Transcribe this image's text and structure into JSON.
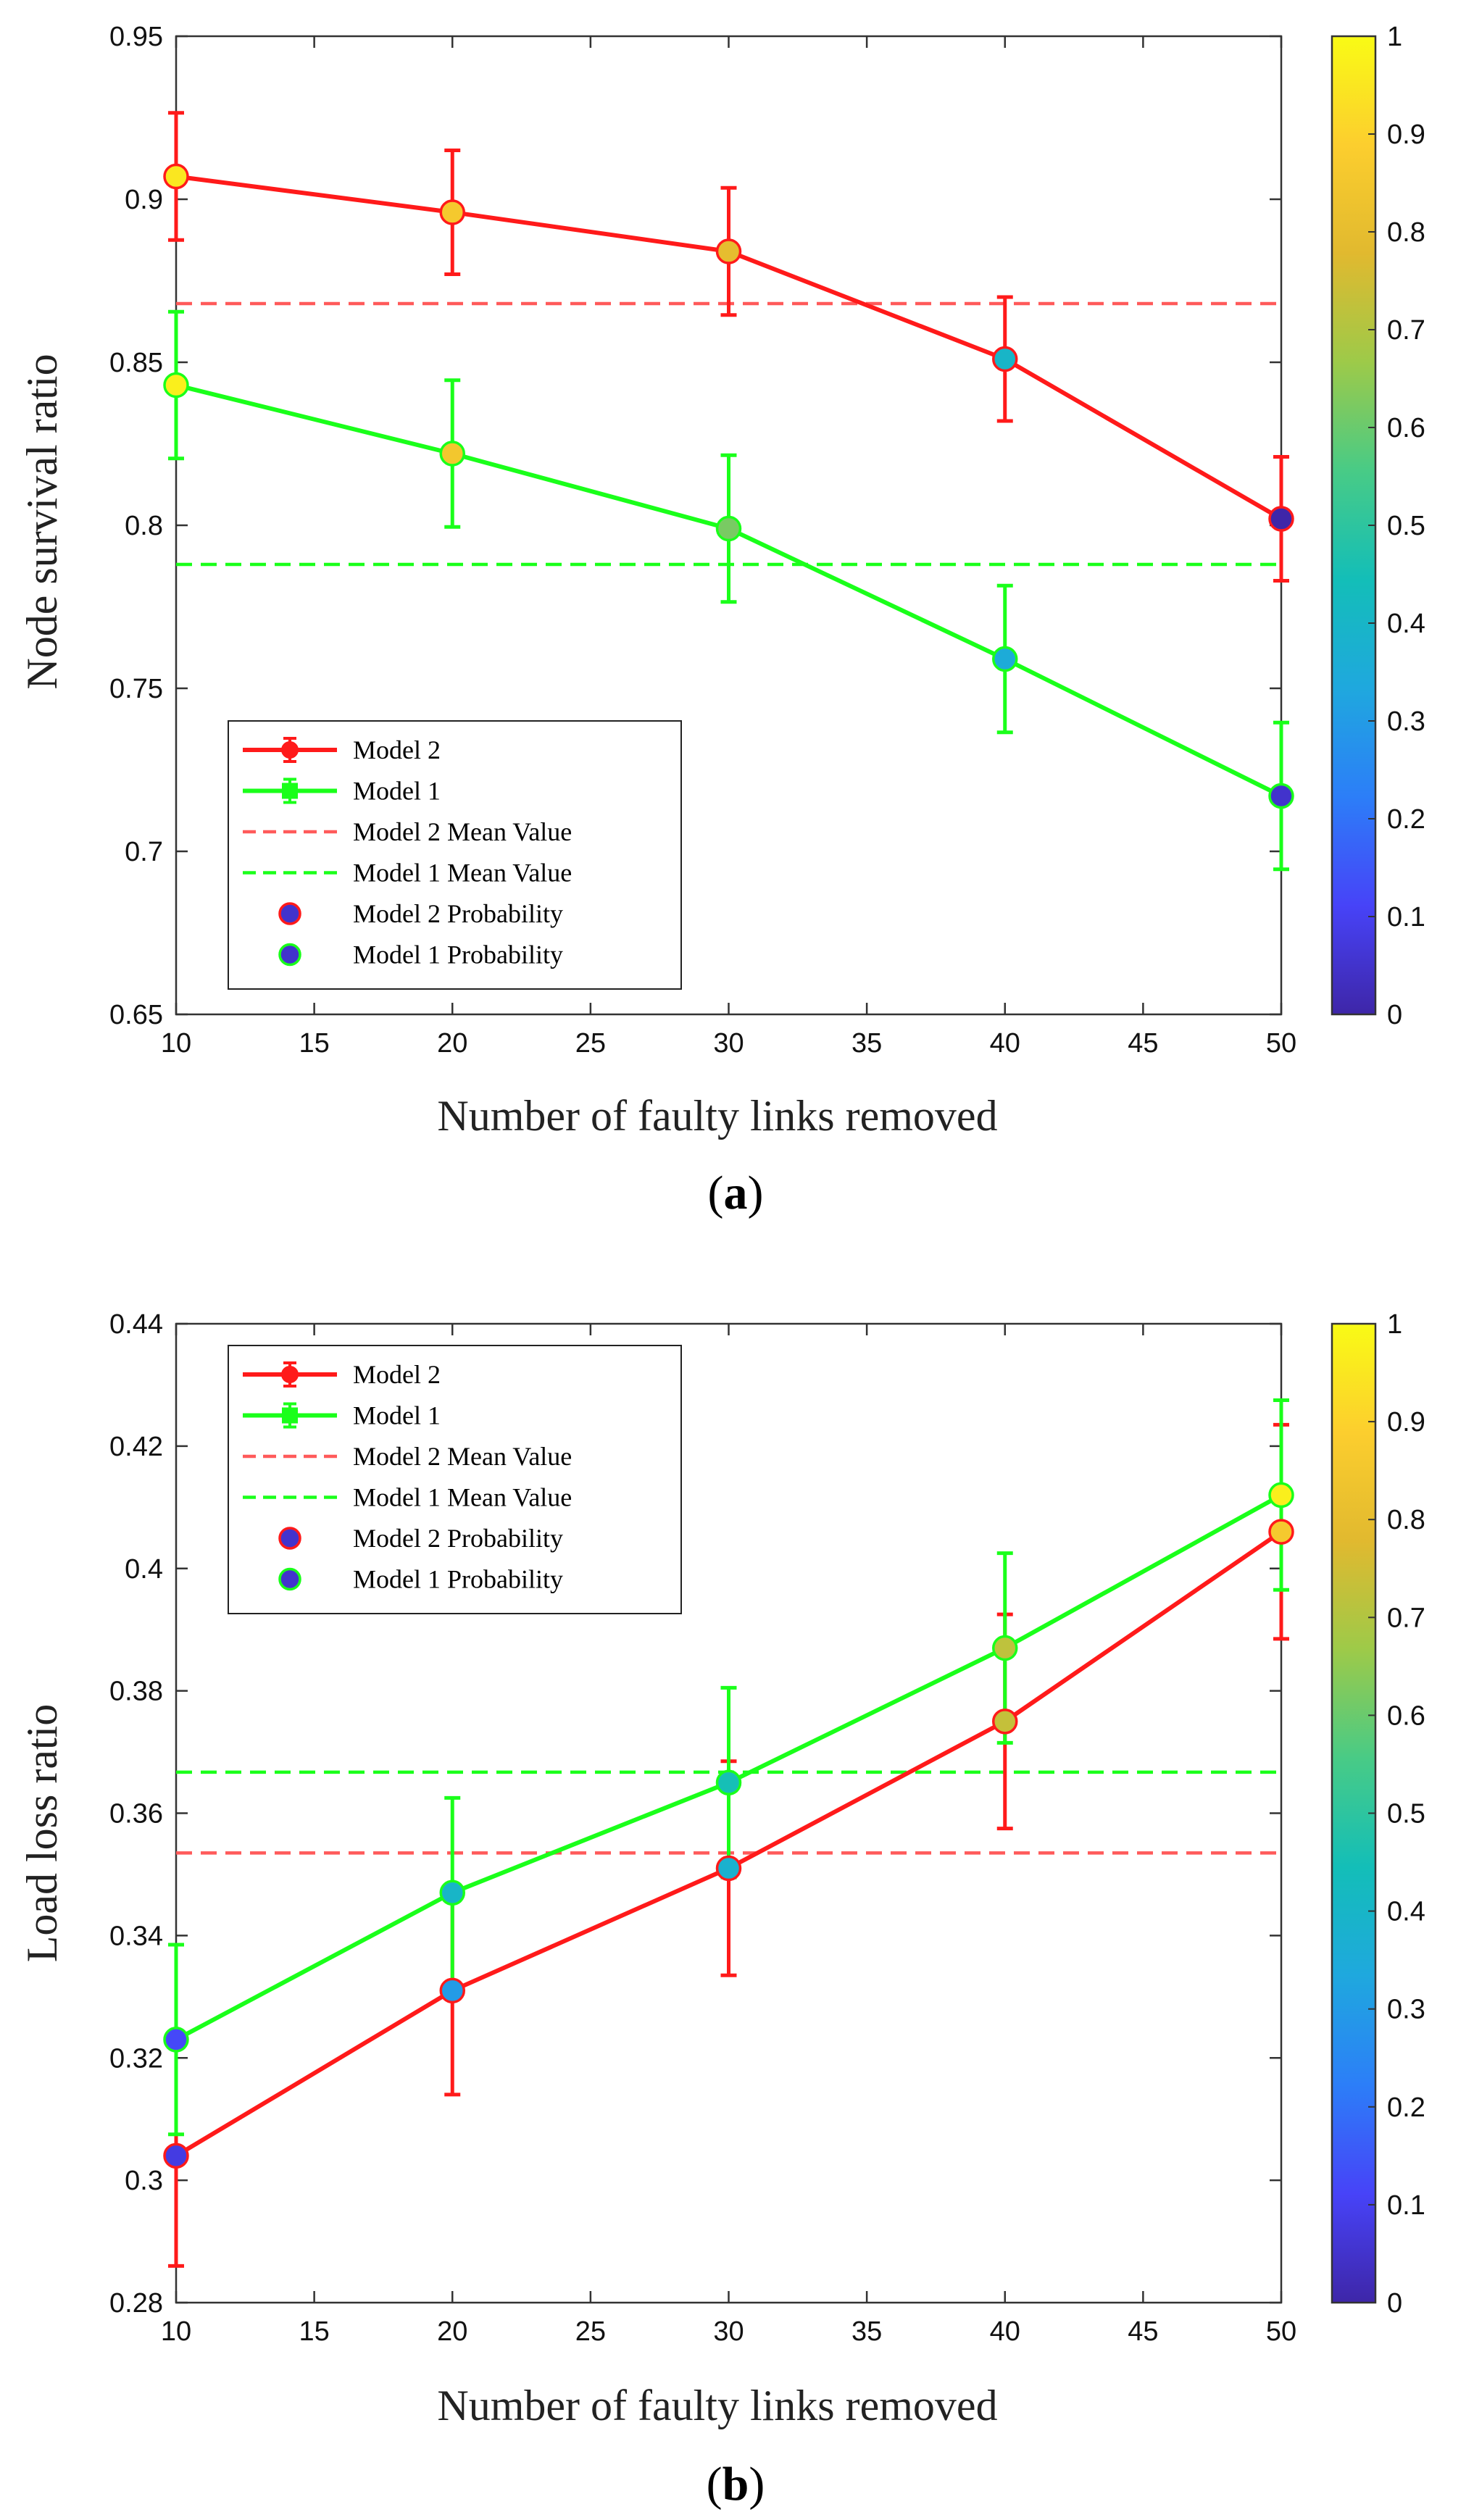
{
  "colors": {
    "model2": "#ff1a1a",
    "model1": "#1aff1a",
    "model2_mean": "#ff5a5a",
    "model1_mean": "#1aff1a"
  },
  "colormap_stops": [
    "#3e26a8",
    "#4743f8",
    "#2c7ef8",
    "#1fa8de",
    "#13beb8",
    "#48cb86",
    "#9dca49",
    "#e1b92f",
    "#fcce2e",
    "#f9fb15"
  ],
  "chart_data": [
    {
      "id": "a",
      "type": "line",
      "panel_label": "(a)",
      "panel_letter": "a",
      "xlabel": "Number of faulty links removed",
      "ylabel": "Node survival ratio",
      "xlim": [
        10,
        50
      ],
      "ylim": [
        0.65,
        0.95
      ],
      "xticks": [
        10,
        15,
        20,
        25,
        30,
        35,
        40,
        45,
        50
      ],
      "yticks": [
        "0.65",
        "0.7",
        "0.75",
        "0.8",
        "0.85",
        "0.9",
        "0.95"
      ],
      "x": [
        10,
        20,
        30,
        40,
        50
      ],
      "series": [
        {
          "name": "Model 2",
          "key": "model2",
          "values": [
            0.907,
            0.896,
            0.884,
            0.851,
            0.802
          ],
          "err": [
            0.0195,
            0.019,
            0.0195,
            0.019,
            0.019
          ],
          "prob": [
            0.95,
            0.86,
            0.8,
            0.4,
            0.0
          ]
        },
        {
          "name": "Model 1",
          "key": "model1",
          "values": [
            0.843,
            0.822,
            0.799,
            0.759,
            0.717
          ],
          "err": [
            0.0225,
            0.0225,
            0.0225,
            0.0225,
            0.0225
          ],
          "prob": [
            0.97,
            0.85,
            0.62,
            0.35,
            0.05
          ]
        }
      ],
      "means": [
        {
          "name": "Model 2 Mean Value",
          "key": "model2_mean",
          "value": 0.868
        },
        {
          "name": "Model 1 Mean Value",
          "key": "model1_mean",
          "value": 0.788
        }
      ],
      "legend": {
        "position": "bottom-left",
        "items": [
          "Model 2",
          "Model 1",
          "Model 2 Mean Value",
          "Model 1 Mean Value",
          "Model 2 Probability",
          "Model 1 Probability"
        ]
      },
      "colorbar": {
        "range": [
          0,
          1
        ],
        "ticks": [
          "0",
          "0.1",
          "0.2",
          "0.3",
          "0.4",
          "0.5",
          "0.6",
          "0.7",
          "0.8",
          "0.9",
          "1"
        ]
      }
    },
    {
      "id": "b",
      "type": "line",
      "panel_label": "(b)",
      "panel_letter": "b",
      "xlabel": "Number of faulty links removed",
      "ylabel": "Load loss ratio",
      "xlim": [
        10,
        50
      ],
      "ylim": [
        0.28,
        0.44
      ],
      "xticks": [
        10,
        15,
        20,
        25,
        30,
        35,
        40,
        45,
        50
      ],
      "yticks": [
        "0.28",
        "0.3",
        "0.32",
        "0.34",
        "0.36",
        "0.38",
        "0.4",
        "0.42",
        "0.44"
      ],
      "x": [
        10,
        20,
        30,
        40,
        50
      ],
      "series": [
        {
          "name": "Model 2",
          "key": "model2",
          "values": [
            0.304,
            0.331,
            0.351,
            0.375,
            0.406
          ],
          "err": [
            0.018,
            0.017,
            0.0175,
            0.0175,
            0.0175
          ],
          "prob": [
            0.08,
            0.3,
            0.38,
            0.73,
            0.86
          ]
        },
        {
          "name": "Model 1",
          "key": "model1",
          "values": [
            0.323,
            0.347,
            0.365,
            0.387,
            0.412
          ],
          "err": [
            0.0155,
            0.0155,
            0.0155,
            0.0155,
            0.0155
          ],
          "prob": [
            0.12,
            0.4,
            0.45,
            0.72,
            0.97
          ]
        }
      ],
      "means": [
        {
          "name": "Model 2 Mean Value",
          "key": "model2_mean",
          "value": 0.3535
        },
        {
          "name": "Model 1 Mean Value",
          "key": "model1_mean",
          "value": 0.3667
        }
      ],
      "legend": {
        "position": "top-left",
        "items": [
          "Model 2",
          "Model 1",
          "Model 2 Mean Value",
          "Model 1 Mean Value",
          "Model 2 Probability",
          "Model 1 Probability"
        ]
      },
      "colorbar": {
        "range": [
          0,
          1
        ],
        "ticks": [
          "0",
          "0.1",
          "0.2",
          "0.3",
          "0.4",
          "0.5",
          "0.6",
          "0.7",
          "0.8",
          "0.9",
          "1"
        ]
      }
    }
  ]
}
